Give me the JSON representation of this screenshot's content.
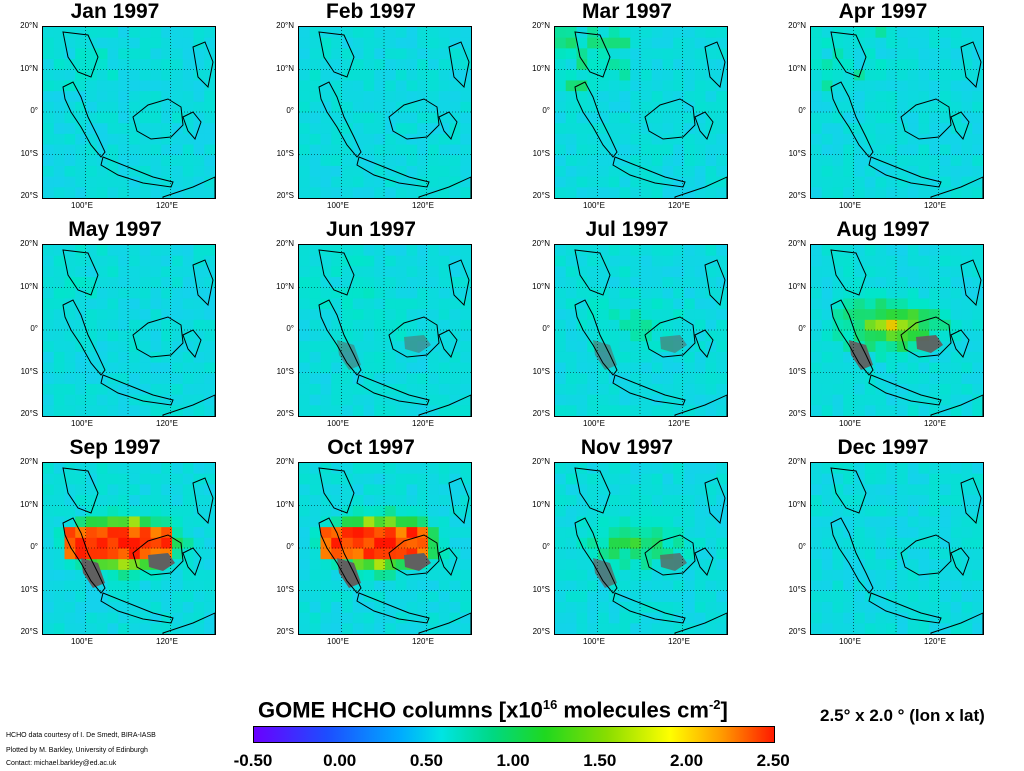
{
  "panels": [
    {
      "title": "Jan 1997",
      "fire": 0,
      "dry": 0.2
    },
    {
      "title": "Feb 1997",
      "fire": 0,
      "dry": 0.1
    },
    {
      "title": "Mar 1997",
      "fire": 0,
      "dry": 0.7
    },
    {
      "title": "Apr 1997",
      "fire": 0,
      "dry": 0.4
    },
    {
      "title": "May 1997",
      "fire": 0,
      "dry": 0.2
    },
    {
      "title": "Jun 1997",
      "fire": 0.1,
      "dry": 0.2
    },
    {
      "title": "Jul 1997",
      "fire": 0.15,
      "dry": 0.1
    },
    {
      "title": "Aug 1997",
      "fire": 0.55,
      "dry": 0.1
    },
    {
      "title": "Sep 1997",
      "fire": 1.0,
      "dry": 0.1
    },
    {
      "title": "Oct 1997",
      "fire": 1.0,
      "dry": 0.1
    },
    {
      "title": "Nov 1997",
      "fire": 0.35,
      "dry": 0.1
    },
    {
      "title": "Dec 1997",
      "fire": 0,
      "dry": 0.05
    }
  ],
  "lat_labels": [
    "20°N",
    "10°N",
    "0°",
    "10°S",
    "20°S"
  ],
  "lon_labels": [
    "100°E",
    "120°E"
  ],
  "colorbar": {
    "title_main": "GOME HCHO columns [x10",
    "title_exp": "16",
    "title_mid": " molecules cm",
    "title_exp2": "-2",
    "title_end": "]",
    "ticks": [
      "-0.50",
      "0.00",
      "0.50",
      "1.00",
      "1.50",
      "2.00",
      "2.50"
    ]
  },
  "resolution": "2.5° x 2.0 ° (lon x lat)",
  "credits": [
    "HCHO data courtesy of I. De Smedt, BIRA-IASB",
    "Plotted by M. Barkley, University of Edinburgh",
    "Contact: michael.barkley@ed.ac.uk"
  ],
  "colors": {
    "low": "#1dc8ff",
    "base": "#2fd2e6",
    "fire": "#ff2a00",
    "mask": "#606060"
  }
}
